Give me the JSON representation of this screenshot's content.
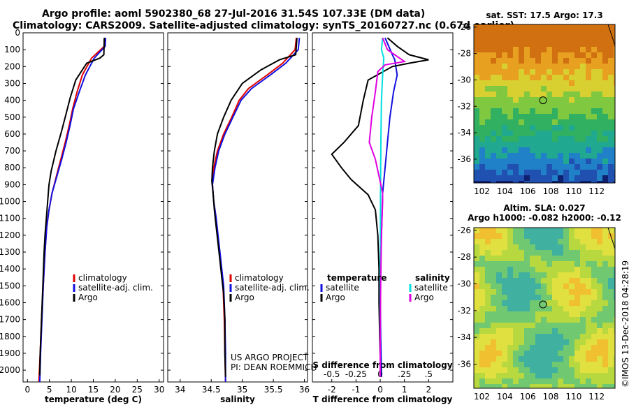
{
  "header": {
    "line1": "Argo profile: aoml 5902380_68 27-Jul-2016 31.54S 107.33E (DM data)",
    "line2": "Climatology: CARS2009. Satellite-adjusted climatology: synTS_20160727.nc (0.67d earlier)"
  },
  "colors": {
    "climatology": "#e00000",
    "satellite": "#1010e0",
    "argo": "#000000",
    "sal_satellite": "#00e0e0",
    "sal_argo": "#e000e0"
  },
  "chart_data": [
    {
      "type": "line",
      "xlabel": "temperature (deg C)",
      "xlim": [
        -1,
        31
      ],
      "xticks": [
        0,
        5,
        10,
        15,
        20,
        25,
        30
      ],
      "ylim": [
        2070,
        0
      ],
      "yticks": [
        0,
        100,
        200,
        300,
        400,
        500,
        600,
        700,
        800,
        900,
        1000,
        1100,
        1200,
        1300,
        1400,
        1500,
        1600,
        1700,
        1800,
        1900,
        2000
      ],
      "legend": [
        "climatology",
        "satellite-adj. clim.",
        "Argo"
      ],
      "series": [
        {
          "name": "climatology",
          "points": [
            [
              17.6,
              30
            ],
            [
              17.5,
              80
            ],
            [
              14.6,
              150
            ],
            [
              12.5,
              250
            ],
            [
              11.3,
              350
            ],
            [
              10.3,
              450
            ],
            [
              9.5,
              550
            ],
            [
              8.6,
              650
            ],
            [
              7.6,
              750
            ],
            [
              6.6,
              850
            ],
            [
              5.6,
              950
            ],
            [
              4.9,
              1050
            ],
            [
              4.4,
              1150
            ],
            [
              4.0,
              1300
            ],
            [
              3.6,
              1500
            ],
            [
              3.2,
              1700
            ],
            [
              2.9,
              1900
            ],
            [
              2.6,
              2070
            ]
          ]
        },
        {
          "name": "satellite-adj. clim.",
          "points": [
            [
              17.8,
              30
            ],
            [
              17.7,
              80
            ],
            [
              15.2,
              150
            ],
            [
              13.2,
              250
            ],
            [
              11.8,
              350
            ],
            [
              10.5,
              450
            ],
            [
              9.7,
              550
            ],
            [
              8.8,
              650
            ],
            [
              7.8,
              750
            ],
            [
              6.7,
              850
            ],
            [
              5.6,
              950
            ],
            [
              4.9,
              1050
            ],
            [
              4.4,
              1150
            ],
            [
              4.0,
              1300
            ],
            [
              3.6,
              1500
            ],
            [
              3.3,
              1700
            ],
            [
              3.0,
              1900
            ],
            [
              2.8,
              2070
            ]
          ]
        },
        {
          "name": "Argo",
          "points": [
            [
              17.5,
              30
            ],
            [
              17.4,
              130
            ],
            [
              16.5,
              150
            ],
            [
              13.5,
              180
            ],
            [
              11.0,
              280
            ],
            [
              9.8,
              380
            ],
            [
              8.8,
              480
            ],
            [
              7.8,
              580
            ],
            [
              6.5,
              700
            ],
            [
              5.4,
              820
            ],
            [
              4.9,
              900
            ],
            [
              4.6,
              1000
            ],
            [
              4.3,
              1100
            ],
            [
              4.0,
              1200
            ],
            [
              3.8,
              1300
            ],
            [
              3.5,
              1500
            ],
            [
              3.2,
              1700
            ],
            [
              2.9,
              1900
            ],
            [
              2.8,
              2030
            ]
          ]
        }
      ]
    },
    {
      "type": "line",
      "xlabel": "salinity",
      "xlim": [
        33.8,
        36.05
      ],
      "xticks": [
        34,
        34.5,
        35,
        35.5,
        36
      ],
      "ylim": [
        2070,
        0
      ],
      "legend": [
        "climatology",
        "satellite-adj. clim.",
        "Argo"
      ],
      "annotations": [
        "US ARGO PROJECT",
        "PI: DEAN ROEMMICH"
      ],
      "series": [
        {
          "name": "climatology",
          "points": [
            [
              35.87,
              30
            ],
            [
              35.85,
              100
            ],
            [
              35.65,
              180
            ],
            [
              35.4,
              250
            ],
            [
              35.1,
              330
            ],
            [
              34.95,
              400
            ],
            [
              34.83,
              500
            ],
            [
              34.7,
              600
            ],
            [
              34.6,
              700
            ],
            [
              34.54,
              800
            ],
            [
              34.52,
              900
            ],
            [
              34.54,
              1000
            ],
            [
              34.58,
              1100
            ],
            [
              34.6,
              1200
            ],
            [
              34.63,
              1300
            ],
            [
              34.66,
              1400
            ],
            [
              34.69,
              1500
            ],
            [
              34.71,
              1700
            ],
            [
              34.72,
              1900
            ],
            [
              34.73,
              2070
            ]
          ]
        },
        {
          "name": "satellite-adj. clim.",
          "points": [
            [
              35.92,
              30
            ],
            [
              35.9,
              100
            ],
            [
              35.7,
              180
            ],
            [
              35.45,
              250
            ],
            [
              35.15,
              330
            ],
            [
              34.98,
              400
            ],
            [
              34.85,
              500
            ],
            [
              34.72,
              600
            ],
            [
              34.62,
              700
            ],
            [
              34.56,
              800
            ],
            [
              34.52,
              900
            ],
            [
              34.54,
              1000
            ],
            [
              34.58,
              1100
            ],
            [
              34.61,
              1200
            ],
            [
              34.64,
              1300
            ],
            [
              34.67,
              1400
            ],
            [
              34.7,
              1500
            ],
            [
              34.72,
              1700
            ],
            [
              34.73,
              1900
            ],
            [
              34.73,
              2070
            ]
          ]
        },
        {
          "name": "Argo",
          "points": [
            [
              35.88,
              30
            ],
            [
              35.86,
              130
            ],
            [
              35.6,
              160
            ],
            [
              35.3,
              220
            ],
            [
              35.0,
              300
            ],
            [
              34.82,
              400
            ],
            [
              34.7,
              500
            ],
            [
              34.6,
              600
            ],
            [
              34.55,
              700
            ],
            [
              34.52,
              800
            ],
            [
              34.51,
              880
            ],
            [
              34.53,
              950
            ],
            [
              34.55,
              1050
            ],
            [
              34.58,
              1150
            ],
            [
              34.61,
              1250
            ],
            [
              34.64,
              1350
            ],
            [
              34.67,
              1450
            ],
            [
              34.7,
              1550
            ],
            [
              34.72,
              1700
            ],
            [
              34.72,
              1900
            ],
            [
              34.73,
              2040
            ]
          ]
        }
      ]
    },
    {
      "type": "line",
      "xlabel": "T difference from climatology",
      "xlim": [
        -2.8,
        3.0
      ],
      "xticks": [
        -2,
        -1,
        0,
        1,
        2
      ],
      "top_xlabel": "S difference from climatology",
      "top_xticks": [
        -0.5,
        -0.25,
        0,
        0.25,
        0.5
      ],
      "ylim": [
        2070,
        0
      ],
      "legend_temperature": {
        "title": "temperature",
        "items": [
          "satellite",
          "Argo"
        ]
      },
      "legend_salinity": {
        "title": "salinity",
        "items": [
          "satellite",
          "Argo"
        ]
      },
      "series": [
        {
          "name": "temperature satellite",
          "points": [
            [
              0.2,
              30
            ],
            [
              0.5,
              130
            ],
            [
              0.6,
              160
            ],
            [
              0.7,
              250
            ],
            [
              0.55,
              350
            ],
            [
              0.4,
              500
            ],
            [
              0.3,
              650
            ],
            [
              0.2,
              800
            ],
            [
              0.1,
              950
            ],
            [
              0.05,
              1200
            ],
            [
              0.0,
              1500
            ],
            [
              0.02,
              1800
            ],
            [
              0.05,
              2040
            ]
          ]
        },
        {
          "name": "temperature Argo",
          "points": [
            [
              0.3,
              30
            ],
            [
              0.7,
              80
            ],
            [
              1.2,
              130
            ],
            [
              2.0,
              160
            ],
            [
              1.2,
              180
            ],
            [
              0.5,
              200
            ],
            [
              -0.5,
              280
            ],
            [
              -0.7,
              400
            ],
            [
              -0.9,
              550
            ],
            [
              -1.5,
              650
            ],
            [
              -2.0,
              720
            ],
            [
              -1.6,
              800
            ],
            [
              -1.2,
              870
            ],
            [
              -0.5,
              960
            ],
            [
              -0.2,
              1050
            ],
            [
              -0.1,
              1200
            ],
            [
              -0.05,
              1400
            ],
            [
              -0.05,
              1600
            ],
            [
              -0.02,
              1800
            ],
            [
              0.02,
              2040
            ]
          ]
        },
        {
          "name": "salinity satellite",
          "points": [
            [
              0.1,
              30
            ],
            [
              0.05,
              100
            ],
            [
              0.15,
              150
            ],
            [
              0.1,
              250
            ],
            [
              0.05,
              400
            ],
            [
              0.03,
              600
            ],
            [
              0.02,
              800
            ],
            [
              0.01,
              1000
            ],
            [
              0.0,
              1500
            ],
            [
              0.0,
              2040
            ]
          ]
        },
        {
          "name": "salinity Argo",
          "points": [
            [
              0.1,
              30
            ],
            [
              0.3,
              100
            ],
            [
              1.0,
              170
            ],
            [
              0.2,
              190
            ],
            [
              -0.1,
              230
            ],
            [
              -0.2,
              350
            ],
            [
              -0.35,
              500
            ],
            [
              -0.45,
              650
            ],
            [
              -0.2,
              750
            ],
            [
              -0.05,
              850
            ],
            [
              0.1,
              950
            ],
            [
              0.1,
              1000
            ],
            [
              0.05,
              1200
            ],
            [
              0.02,
              1500
            ],
            [
              0.0,
              1800
            ],
            [
              0.0,
              2040
            ]
          ]
        }
      ]
    },
    {
      "type": "heatmap",
      "title": "sat. SST: 17.5 Argo: 17.3",
      "xlim": [
        101.3,
        113.6
      ],
      "ylim": [
        -37.8,
        -25.8
      ],
      "xticks": [
        102,
        104,
        106,
        108,
        110,
        112
      ],
      "yticks": [
        -26,
        -28,
        -30,
        -32,
        -34,
        -36
      ],
      "argo_position": [
        107.33,
        -31.54
      ]
    },
    {
      "type": "heatmap",
      "title": "Altim. SLA: 0.027",
      "subtitle": "Argo h1000: -0.082 h2000: -0.12",
      "xlim": [
        101.3,
        113.6
      ],
      "ylim": [
        -37.8,
        -25.8
      ],
      "xticks": [
        102,
        104,
        106,
        108,
        110,
        112
      ],
      "yticks": [
        -26,
        -28,
        -30,
        -32,
        -34,
        -36
      ],
      "argo_position": [
        107.33,
        -31.54
      ]
    }
  ],
  "footer": {
    "credit": "©IMOS 13-Dec-2018 04:28:19"
  }
}
